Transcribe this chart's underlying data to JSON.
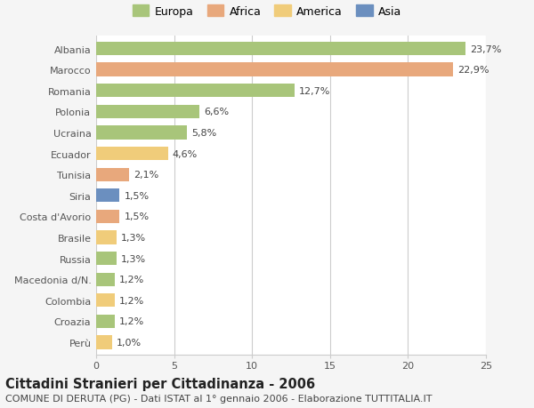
{
  "categories": [
    "Albania",
    "Marocco",
    "Romania",
    "Polonia",
    "Ucraina",
    "Ecuador",
    "Tunisia",
    "Siria",
    "Costa d'Avorio",
    "Brasile",
    "Russia",
    "Macedonia d/N.",
    "Colombia",
    "Croazia",
    "Perù"
  ],
  "values": [
    23.7,
    22.9,
    12.7,
    6.6,
    5.8,
    4.6,
    2.1,
    1.5,
    1.5,
    1.3,
    1.3,
    1.2,
    1.2,
    1.2,
    1.0
  ],
  "labels": [
    "23,7%",
    "22,9%",
    "12,7%",
    "6,6%",
    "5,8%",
    "4,6%",
    "2,1%",
    "1,5%",
    "1,5%",
    "1,3%",
    "1,3%",
    "1,2%",
    "1,2%",
    "1,2%",
    "1,0%"
  ],
  "colors": [
    "#a8c57a",
    "#e8a87c",
    "#a8c57a",
    "#a8c57a",
    "#a8c57a",
    "#f0cc7a",
    "#e8a87c",
    "#6b8fbf",
    "#e8a87c",
    "#f0cc7a",
    "#a8c57a",
    "#a8c57a",
    "#f0cc7a",
    "#a8c57a",
    "#f0cc7a"
  ],
  "legend_labels": [
    "Europa",
    "Africa",
    "America",
    "Asia"
  ],
  "legend_colors": [
    "#a8c57a",
    "#e8a87c",
    "#f0cc7a",
    "#6b8fbf"
  ],
  "title": "Cittadini Stranieri per Cittadinanza - 2006",
  "subtitle": "COMUNE DI DERUTA (PG) - Dati ISTAT al 1° gennaio 2006 - Elaborazione TUTTITALIA.IT",
  "xlim": [
    0,
    25
  ],
  "xticks": [
    0,
    5,
    10,
    15,
    20,
    25
  ],
  "background_color": "#f5f5f5",
  "bar_background": "#ffffff",
  "grid_color": "#cccccc",
  "title_fontsize": 10.5,
  "subtitle_fontsize": 8.0,
  "label_fontsize": 8.0,
  "tick_fontsize": 8.0,
  "legend_fontsize": 9.0
}
